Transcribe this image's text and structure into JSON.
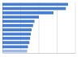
{
  "chart_data": {
    "type": "bar",
    "orientation": "horizontal",
    "categories": [
      null,
      null,
      null,
      null,
      null,
      null,
      null,
      null,
      null,
      null,
      null,
      null
    ],
    "values": [
      90,
      87,
      70,
      50,
      44,
      42,
      40,
      39,
      38,
      37,
      35,
      34
    ],
    "colors": [
      "#4a7fd4",
      "#4a7fd4",
      "#4a7fd4",
      "#4a7fd4",
      "#4a7fd4",
      "#4a7fd4",
      "#4a7fd4",
      "#4a7fd4",
      "#4a7fd4",
      "#4a7fd4",
      "#4a7fd4",
      "#9fb9e3"
    ],
    "xlim": [
      0,
      100
    ],
    "xticks": [
      0,
      25,
      50,
      75,
      100
    ],
    "grid": true,
    "tick_labels": false
  }
}
